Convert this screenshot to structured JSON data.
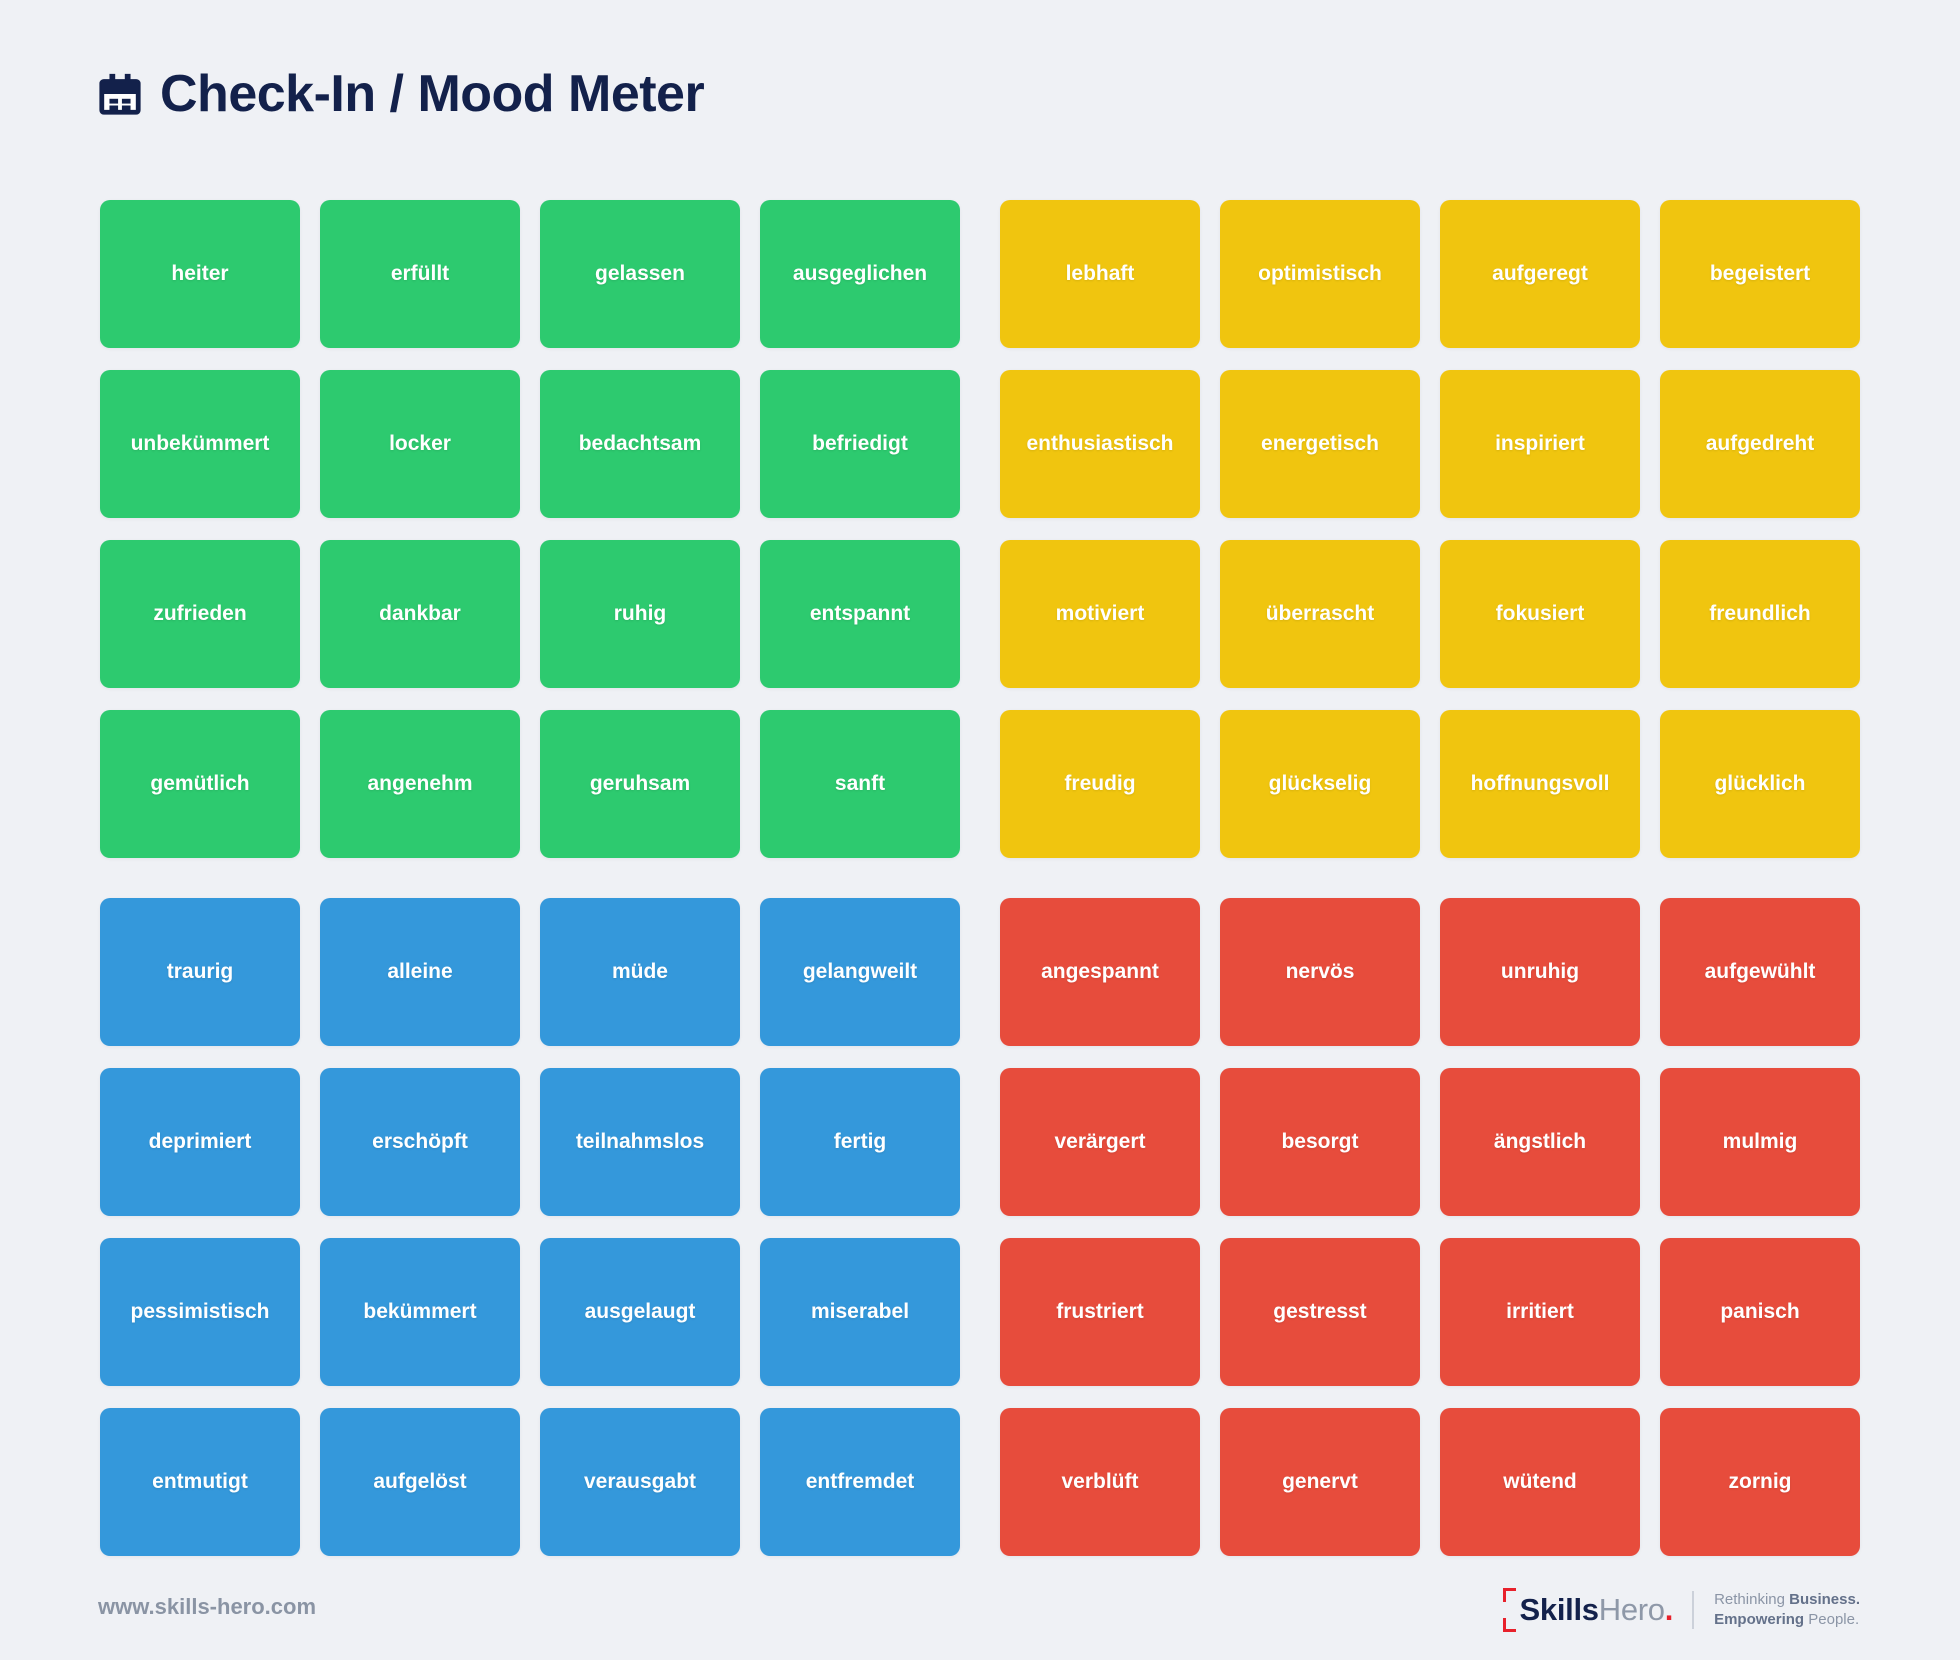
{
  "page": {
    "title": "Check-In / Mood Meter",
    "background_color": "#eff1f5",
    "title_color": "#13214b"
  },
  "icons": {
    "header_icon": "calendar-icon"
  },
  "quadrants": [
    {
      "id": "green",
      "color": "#2dca6f",
      "rows": [
        [
          "heiter",
          "erfüllt",
          "gelassen",
          "ausgeglichen"
        ],
        [
          "unbekümmert",
          "locker",
          "bedachtsam",
          "befriedigt"
        ],
        [
          "zufrieden",
          "dankbar",
          "ruhig",
          "entspannt"
        ],
        [
          "gemütlich",
          "angenehm",
          "geruhsam",
          "sanft"
        ]
      ]
    },
    {
      "id": "yellow",
      "color": "#f0c50f",
      "rows": [
        [
          "lebhaft",
          "optimistisch",
          "aufgeregt",
          "begeistert"
        ],
        [
          "enthusiastisch",
          "energetisch",
          "inspiriert",
          "aufgedreht"
        ],
        [
          "motiviert",
          "überrascht",
          "fokusiert",
          "freundlich"
        ],
        [
          "freudig",
          "glückselig",
          "hoffnungsvoll",
          "glücklich"
        ]
      ]
    },
    {
      "id": "blue",
      "color": "#3498db",
      "rows": [
        [
          "traurig",
          "alleine",
          "müde",
          "gelangweilt"
        ],
        [
          "deprimiert",
          "erschöpft",
          "teilnahmslos",
          "fertig"
        ],
        [
          "pessimistisch",
          "bekümmert",
          "ausgelaugt",
          "miserabel"
        ],
        [
          "entmutigt",
          "aufgelöst",
          "verausgabt",
          "entfremdet"
        ]
      ]
    },
    {
      "id": "red",
      "color": "#e74c3c",
      "rows": [
        [
          "angespannt",
          "nervös",
          "unruhig",
          "aufgewühlt"
        ],
        [
          "verärgert",
          "besorgt",
          "ängstlich",
          "mulmig"
        ],
        [
          "frustriert",
          "gestresst",
          "irritiert",
          "panisch"
        ],
        [
          "verblüft",
          "genervt",
          "wütend",
          "zornig"
        ]
      ]
    }
  ],
  "footer": {
    "website": "www.skills-hero.com",
    "logo": {
      "part1": "Skills",
      "part2": "Hero",
      "dot": ".",
      "accent_color": "#e8212b"
    },
    "tagline_lines": [
      {
        "segments": [
          {
            "text": "Rethinking ",
            "bold": false
          },
          {
            "text": "Business.",
            "bold": true
          }
        ]
      },
      {
        "segments": [
          {
            "text": "Empowering ",
            "bold": true
          },
          {
            "text": "People.",
            "bold": false
          }
        ]
      }
    ]
  }
}
